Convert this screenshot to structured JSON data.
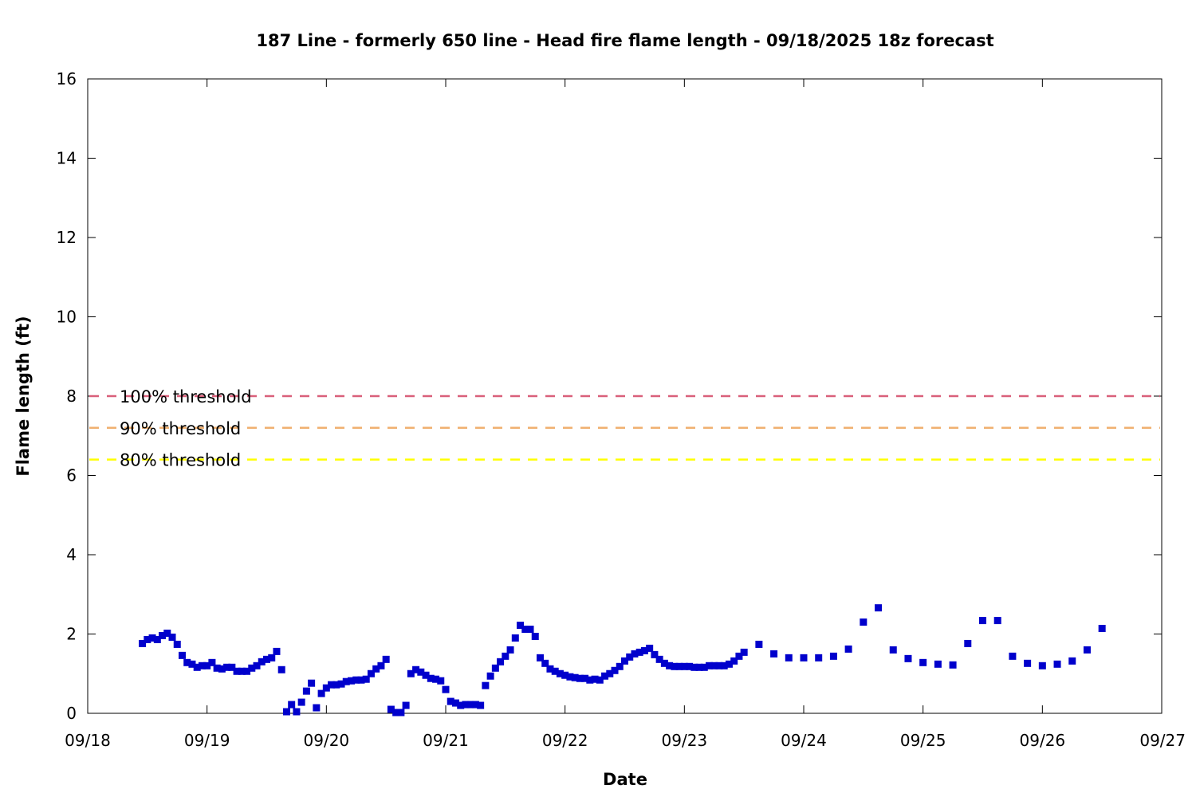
{
  "chart_data": {
    "type": "scatter",
    "title": "187 Line - formerly 650 line - Head fire flame length - 09/18/2025 18z forecast",
    "xlabel": "Date",
    "ylabel": "Flame length (ft)",
    "xlim": [
      "09/18",
      "09/27"
    ],
    "ylim": [
      0,
      16
    ],
    "x_ticks": [
      "09/18",
      "09/19",
      "09/20",
      "09/21",
      "09/22",
      "09/23",
      "09/24",
      "09/25",
      "09/26",
      "09/27"
    ],
    "y_ticks": [
      0,
      2,
      4,
      6,
      8,
      10,
      12,
      14,
      16
    ],
    "grid": false,
    "legend": "none",
    "thresholds": [
      {
        "name": "100% threshold",
        "value": 8.0,
        "color": "#d9607a",
        "style": "dashed"
      },
      {
        "name": "90% threshold",
        "value": 7.2,
        "color": "#f0b070",
        "style": "dashed"
      },
      {
        "name": "80% threshold",
        "value": 6.4,
        "color": "#ffff00",
        "style": "dashed"
      }
    ],
    "series": [
      {
        "marker": "square",
        "color": "#0000cc",
        "points": [
          [
            "09/18 11:00",
            1.76
          ],
          [
            "09/18 12:00",
            1.86
          ],
          [
            "09/18 13:00",
            1.9
          ],
          [
            "09/18 14:00",
            1.86
          ],
          [
            "09/18 15:00",
            1.96
          ],
          [
            "09/18 16:00",
            2.02
          ],
          [
            "09/18 17:00",
            1.92
          ],
          [
            "09/18 18:00",
            1.74
          ],
          [
            "09/18 19:00",
            1.46
          ],
          [
            "09/18 20:00",
            1.28
          ],
          [
            "09/18 21:00",
            1.24
          ],
          [
            "09/18 22:00",
            1.16
          ],
          [
            "09/18 23:00",
            1.2
          ],
          [
            "09/19 00:00",
            1.2
          ],
          [
            "09/19 01:00",
            1.28
          ],
          [
            "09/19 02:00",
            1.14
          ],
          [
            "09/19 03:00",
            1.12
          ],
          [
            "09/19 04:00",
            1.16
          ],
          [
            "09/19 05:00",
            1.16
          ],
          [
            "09/19 06:00",
            1.06
          ],
          [
            "09/19 07:00",
            1.06
          ],
          [
            "09/19 08:00",
            1.06
          ],
          [
            "09/19 09:00",
            1.14
          ],
          [
            "09/19 10:00",
            1.2
          ],
          [
            "09/19 11:00",
            1.3
          ],
          [
            "09/19 12:00",
            1.36
          ],
          [
            "09/19 13:00",
            1.4
          ],
          [
            "09/19 14:00",
            1.56
          ],
          [
            "09/19 15:00",
            1.1
          ],
          [
            "09/19 16:00",
            0.04
          ],
          [
            "09/19 17:00",
            0.22
          ],
          [
            "09/19 18:00",
            0.04
          ],
          [
            "09/19 19:00",
            0.28
          ],
          [
            "09/19 20:00",
            0.56
          ],
          [
            "09/19 21:00",
            0.76
          ],
          [
            "09/19 22:00",
            0.14
          ],
          [
            "09/19 23:00",
            0.5
          ],
          [
            "09/20 00:00",
            0.64
          ],
          [
            "09/20 01:00",
            0.72
          ],
          [
            "09/20 02:00",
            0.72
          ],
          [
            "09/20 03:00",
            0.74
          ],
          [
            "09/20 04:00",
            0.8
          ],
          [
            "09/20 05:00",
            0.82
          ],
          [
            "09/20 06:00",
            0.84
          ],
          [
            "09/20 07:00",
            0.84
          ],
          [
            "09/20 08:00",
            0.86
          ],
          [
            "09/20 09:00",
            1.0
          ],
          [
            "09/20 10:00",
            1.12
          ],
          [
            "09/20 11:00",
            1.2
          ],
          [
            "09/20 12:00",
            1.36
          ],
          [
            "09/20 13:00",
            0.1
          ],
          [
            "09/20 14:00",
            0.02
          ],
          [
            "09/20 15:00",
            0.02
          ],
          [
            "09/20 16:00",
            0.2
          ],
          [
            "09/20 17:00",
            1.0
          ],
          [
            "09/20 18:00",
            1.1
          ],
          [
            "09/20 19:00",
            1.04
          ],
          [
            "09/20 20:00",
            0.96
          ],
          [
            "09/20 21:00",
            0.88
          ],
          [
            "09/20 22:00",
            0.86
          ],
          [
            "09/20 23:00",
            0.82
          ],
          [
            "09/21 00:00",
            0.6
          ],
          [
            "09/21 01:00",
            0.3
          ],
          [
            "09/21 02:00",
            0.26
          ],
          [
            "09/21 03:00",
            0.2
          ],
          [
            "09/21 04:00",
            0.22
          ],
          [
            "09/21 05:00",
            0.22
          ],
          [
            "09/21 06:00",
            0.22
          ],
          [
            "09/21 07:00",
            0.2
          ],
          [
            "09/21 08:00",
            0.7
          ],
          [
            "09/21 09:00",
            0.94
          ],
          [
            "09/21 10:00",
            1.14
          ],
          [
            "09/21 11:00",
            1.3
          ],
          [
            "09/21 12:00",
            1.44
          ],
          [
            "09/21 13:00",
            1.6
          ],
          [
            "09/21 14:00",
            1.9
          ],
          [
            "09/21 15:00",
            2.22
          ],
          [
            "09/21 16:00",
            2.12
          ],
          [
            "09/21 17:00",
            2.12
          ],
          [
            "09/21 18:00",
            1.94
          ],
          [
            "09/21 19:00",
            1.4
          ],
          [
            "09/21 20:00",
            1.26
          ],
          [
            "09/21 21:00",
            1.12
          ],
          [
            "09/21 22:00",
            1.06
          ],
          [
            "09/21 23:00",
            1.0
          ],
          [
            "09/22 00:00",
            0.96
          ],
          [
            "09/22 01:00",
            0.92
          ],
          [
            "09/22 02:00",
            0.9
          ],
          [
            "09/22 03:00",
            0.88
          ],
          [
            "09/22 04:00",
            0.88
          ],
          [
            "09/22 05:00",
            0.84
          ],
          [
            "09/22 06:00",
            0.86
          ],
          [
            "09/22 07:00",
            0.84
          ],
          [
            "09/22 08:00",
            0.94
          ],
          [
            "09/22 09:00",
            1.0
          ],
          [
            "09/22 10:00",
            1.08
          ],
          [
            "09/22 11:00",
            1.18
          ],
          [
            "09/22 12:00",
            1.32
          ],
          [
            "09/22 13:00",
            1.42
          ],
          [
            "09/22 14:00",
            1.5
          ],
          [
            "09/22 15:00",
            1.54
          ],
          [
            "09/22 16:00",
            1.58
          ],
          [
            "09/22 17:00",
            1.64
          ],
          [
            "09/22 18:00",
            1.48
          ],
          [
            "09/22 19:00",
            1.36
          ],
          [
            "09/22 20:00",
            1.26
          ],
          [
            "09/22 21:00",
            1.2
          ],
          [
            "09/22 22:00",
            1.18
          ],
          [
            "09/22 23:00",
            1.18
          ],
          [
            "09/23 00:00",
            1.18
          ],
          [
            "09/23 01:00",
            1.18
          ],
          [
            "09/23 02:00",
            1.16
          ],
          [
            "09/23 03:00",
            1.16
          ],
          [
            "09/23 04:00",
            1.16
          ],
          [
            "09/23 05:00",
            1.2
          ],
          [
            "09/23 06:00",
            1.2
          ],
          [
            "09/23 07:00",
            1.2
          ],
          [
            "09/23 08:00",
            1.2
          ],
          [
            "09/23 09:00",
            1.24
          ],
          [
            "09/23 10:00",
            1.32
          ],
          [
            "09/23 11:00",
            1.44
          ],
          [
            "09/23 12:00",
            1.54
          ],
          [
            "09/23 15:00",
            1.74
          ],
          [
            "09/23 18:00",
            1.5
          ],
          [
            "09/23 21:00",
            1.4
          ],
          [
            "09/24 00:00",
            1.4
          ],
          [
            "09/24 03:00",
            1.4
          ],
          [
            "09/24 06:00",
            1.44
          ],
          [
            "09/24 09:00",
            1.62
          ],
          [
            "09/24 12:00",
            2.3
          ],
          [
            "09/24 15:00",
            2.66
          ],
          [
            "09/24 18:00",
            1.6
          ],
          [
            "09/24 21:00",
            1.38
          ],
          [
            "09/25 00:00",
            1.28
          ],
          [
            "09/25 03:00",
            1.24
          ],
          [
            "09/25 06:00",
            1.22
          ],
          [
            "09/25 09:00",
            1.76
          ],
          [
            "09/25 12:00",
            2.34
          ],
          [
            "09/25 15:00",
            2.34
          ],
          [
            "09/25 18:00",
            1.44
          ],
          [
            "09/25 21:00",
            1.26
          ],
          [
            "09/26 00:00",
            1.2
          ],
          [
            "09/26 03:00",
            1.24
          ],
          [
            "09/26 06:00",
            1.32
          ],
          [
            "09/26 09:00",
            1.6
          ],
          [
            "09/26 12:00",
            2.14
          ]
        ]
      }
    ]
  }
}
